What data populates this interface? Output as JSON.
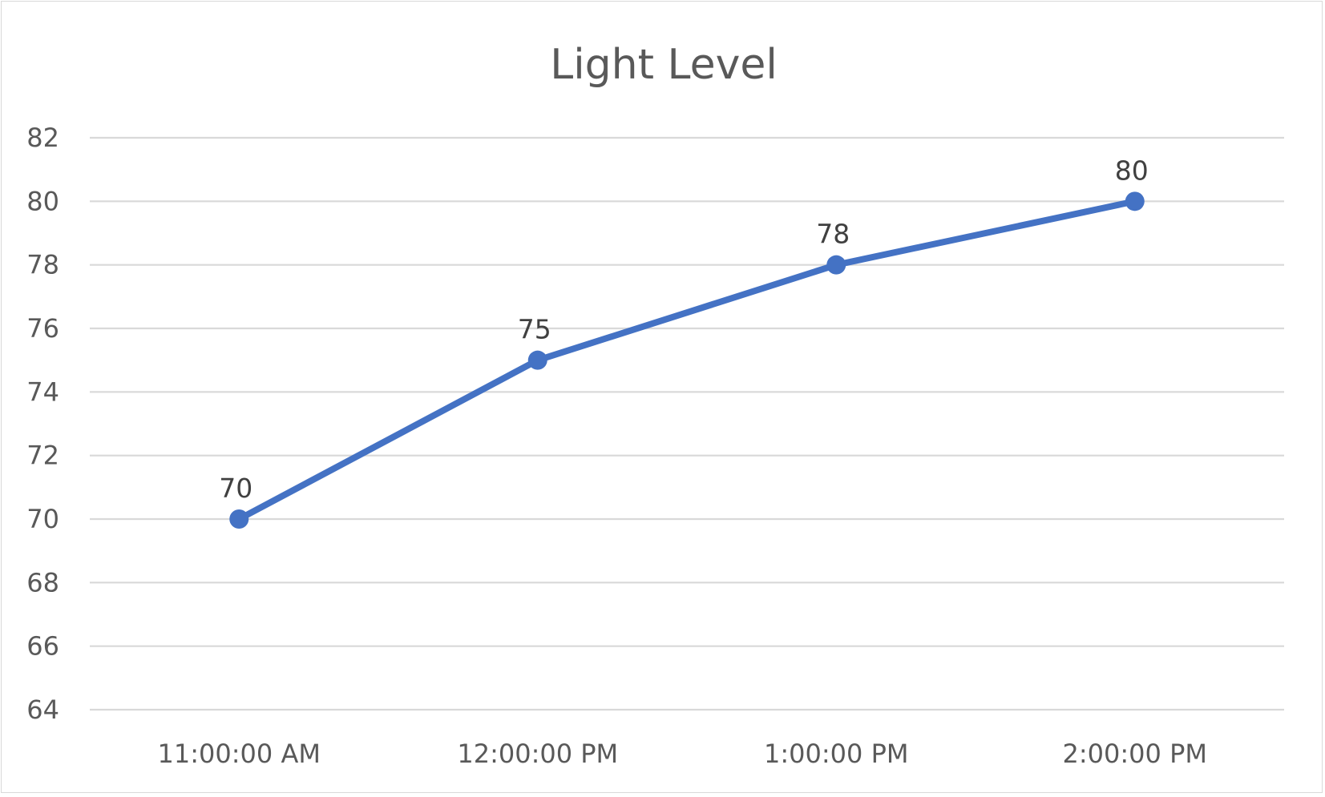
{
  "chart_data": {
    "type": "line",
    "title": "Light Level",
    "categories": [
      "11:00:00 AM",
      "12:00:00 PM",
      "1:00:00 PM",
      "2:00:00 PM"
    ],
    "series": [
      {
        "values": [
          70,
          75,
          78,
          80
        ],
        "color": "#4472c4"
      }
    ],
    "data_labels": [
      "70",
      "75",
      "78",
      "80"
    ],
    "y_ticks": [
      64,
      66,
      68,
      70,
      72,
      74,
      76,
      78,
      80,
      82
    ],
    "ylim": [
      64,
      82
    ],
    "xlabel": "",
    "ylabel": "",
    "grid": true,
    "legend": "none"
  }
}
